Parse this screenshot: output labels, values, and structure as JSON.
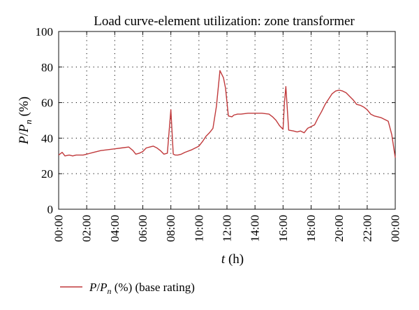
{
  "chart_data": {
    "type": "line",
    "title": "Load curve-element utilization: zone transformer",
    "xlabel": {
      "var": "t",
      "unit": " (h)"
    },
    "ylabel": {
      "p": "P",
      "slash": "/",
      "pn": "P",
      "sub": "n",
      "unit": " (%)"
    },
    "xlim": [
      0,
      24
    ],
    "ylim": [
      0,
      100
    ],
    "grid": true,
    "legend_position": "bottom-left",
    "y_ticks": [
      0,
      20,
      40,
      60,
      80,
      100
    ],
    "x_ticks": [
      {
        "x": 0,
        "label": "00:00"
      },
      {
        "x": 2,
        "label": "02:00"
      },
      {
        "x": 4,
        "label": "04:00"
      },
      {
        "x": 6,
        "label": "06:00"
      },
      {
        "x": 8,
        "label": "08:00"
      },
      {
        "x": 10,
        "label": "10:00"
      },
      {
        "x": 12,
        "label": "12:00"
      },
      {
        "x": 14,
        "label": "14:00"
      },
      {
        "x": 16,
        "label": "16:00"
      },
      {
        "x": 18,
        "label": "18:00"
      },
      {
        "x": 20,
        "label": "20:00"
      },
      {
        "x": 22,
        "label": "22:00"
      },
      {
        "x": 24,
        "label": "00:00"
      }
    ],
    "series": [
      {
        "legend": {
          "p": "P",
          "slash": "/",
          "pn": "P",
          "sub": "n",
          "rest": " (%) (base rating)"
        },
        "color": "#c0393b",
        "x": [
          0,
          0.25,
          0.45,
          0.75,
          1.0,
          1.25,
          1.5,
          1.75,
          2.0,
          2.5,
          3.0,
          3.5,
          4.0,
          4.5,
          5.0,
          5.3,
          5.5,
          5.75,
          6.0,
          6.25,
          6.5,
          6.75,
          7.0,
          7.25,
          7.5,
          7.75,
          8.0,
          8.17,
          8.3,
          8.5,
          8.75,
          9.0,
          9.5,
          10.0,
          10.25,
          10.5,
          10.75,
          11.0,
          11.25,
          11.5,
          11.75,
          11.9,
          12.1,
          12.35,
          12.5,
          12.75,
          13.0,
          13.5,
          14.0,
          14.5,
          15.0,
          15.25,
          15.5,
          15.75,
          16.0,
          16.1,
          16.2,
          16.4,
          16.75,
          17.0,
          17.25,
          17.5,
          17.75,
          18.0,
          18.25,
          18.5,
          18.75,
          19.0,
          19.25,
          19.5,
          19.75,
          20.0,
          20.25,
          20.5,
          20.75,
          21.0,
          21.25,
          21.5,
          21.75,
          22.0,
          22.25,
          22.5,
          22.75,
          23.0,
          23.25,
          23.5,
          23.75,
          24.0
        ],
        "y": [
          30.5,
          32,
          30,
          30.5,
          30,
          30.5,
          30.5,
          30.5,
          31,
          32,
          33,
          33.5,
          34,
          34.5,
          35,
          33,
          31,
          31.5,
          32.5,
          34.5,
          35,
          35.5,
          34.5,
          33,
          31,
          31.5,
          56,
          31,
          30.5,
          30.5,
          31,
          32,
          33.5,
          35.5,
          38,
          41,
          43,
          45.5,
          58,
          78,
          74,
          68,
          52.5,
          52,
          53,
          53.5,
          53.5,
          54,
          54,
          54,
          53.5,
          52,
          50,
          47,
          45,
          60,
          69,
          44.5,
          44,
          43.5,
          44,
          43,
          45.5,
          46.5,
          47.5,
          51.5,
          55,
          59,
          62,
          65,
          66.5,
          67,
          66.5,
          65.5,
          63.5,
          61.5,
          59,
          58.5,
          57.5,
          56,
          53.5,
          52.5,
          52,
          51.5,
          50.5,
          49.5,
          42,
          29
        ]
      }
    ]
  }
}
